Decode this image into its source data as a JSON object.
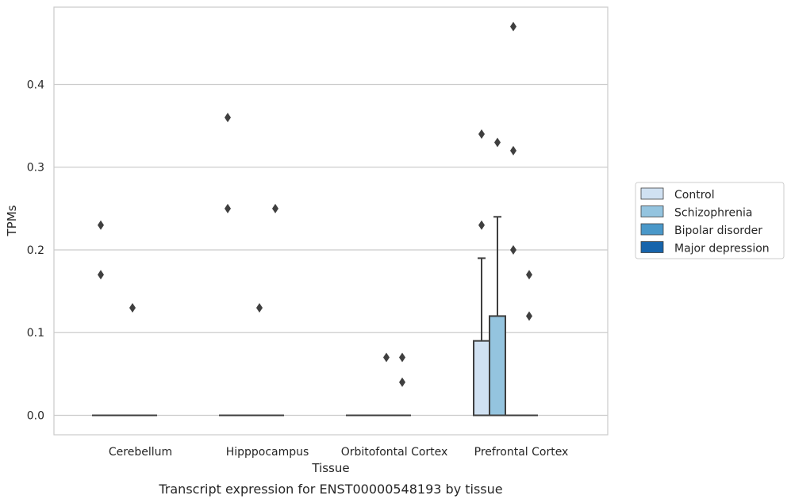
{
  "chart_data": {
    "type": "box",
    "xlabel": "Tissue",
    "ylabel": "TPMs",
    "caption": "Transcript expression for ENST00000548193 by tissue",
    "ylim": [
      -0.0235,
      0.4935
    ],
    "yticks": [
      0.0,
      0.1,
      0.2,
      0.3,
      0.4
    ],
    "ytick_labels": [
      "0.0",
      "0.1",
      "0.2",
      "0.3",
      "0.4"
    ],
    "grid": "horizontal",
    "legend_position": "right",
    "categories": [
      "Cerebellum",
      "Hipppocampus",
      "Orbitofontal Cortex",
      "Prefrontal Cortex"
    ],
    "series": [
      {
        "name": "Control",
        "color": "#d0e1f2",
        "boxes": [
          {
            "q1": 0,
            "median": 0,
            "q3": 0,
            "whisker_low": 0,
            "whisker_high": 0,
            "outliers": [
              0.23,
              0.17
            ]
          },
          {
            "q1": 0,
            "median": 0,
            "q3": 0,
            "whisker_low": 0,
            "whisker_high": 0,
            "outliers": [
              0.36,
              0.25
            ]
          },
          {
            "q1": 0,
            "median": 0,
            "q3": 0,
            "whisker_low": 0,
            "whisker_high": 0,
            "outliers": []
          },
          {
            "q1": 0,
            "median": 0,
            "q3": 0.09,
            "whisker_low": 0,
            "whisker_high": 0.19,
            "outliers": [
              0.34,
              0.23
            ]
          }
        ]
      },
      {
        "name": "Schizophrenia",
        "color": "#94c4df",
        "boxes": [
          {
            "q1": 0,
            "median": 0,
            "q3": 0,
            "whisker_low": 0,
            "whisker_high": 0,
            "outliers": []
          },
          {
            "q1": 0,
            "median": 0,
            "q3": 0,
            "whisker_low": 0,
            "whisker_high": 0,
            "outliers": []
          },
          {
            "q1": 0,
            "median": 0,
            "q3": 0,
            "whisker_low": 0,
            "whisker_high": 0,
            "outliers": []
          },
          {
            "q1": 0,
            "median": 0,
            "q3": 0.12,
            "whisker_low": 0,
            "whisker_high": 0.24,
            "outliers": [
              0.33
            ]
          }
        ]
      },
      {
        "name": "Bipolar disorder",
        "color": "#4a98c9",
        "boxes": [
          {
            "q1": 0,
            "median": 0,
            "q3": 0,
            "whisker_low": 0,
            "whisker_high": 0,
            "outliers": [
              0.13
            ]
          },
          {
            "q1": 0,
            "median": 0,
            "q3": 0,
            "whisker_low": 0,
            "whisker_high": 0,
            "outliers": [
              0.13
            ]
          },
          {
            "q1": 0,
            "median": 0,
            "q3": 0,
            "whisker_low": 0,
            "whisker_high": 0,
            "outliers": [
              0.07
            ]
          },
          {
            "q1": 0,
            "median": 0,
            "q3": 0,
            "whisker_low": 0,
            "whisker_high": 0,
            "outliers": [
              0.47,
              0.32,
              0.2
            ]
          }
        ]
      },
      {
        "name": "Major depression",
        "color": "#1764ab",
        "boxes": [
          {
            "q1": 0,
            "median": 0,
            "q3": 0,
            "whisker_low": 0,
            "whisker_high": 0,
            "outliers": []
          },
          {
            "q1": 0,
            "median": 0,
            "q3": 0,
            "whisker_low": 0,
            "whisker_high": 0,
            "outliers": [
              0.25
            ]
          },
          {
            "q1": 0,
            "median": 0,
            "q3": 0,
            "whisker_low": 0,
            "whisker_high": 0,
            "outliers": [
              0.07,
              0.04
            ]
          },
          {
            "q1": 0,
            "median": 0,
            "q3": 0,
            "whisker_low": 0,
            "whisker_high": 0,
            "outliers": [
              0.17,
              0.12
            ]
          }
        ]
      }
    ]
  }
}
